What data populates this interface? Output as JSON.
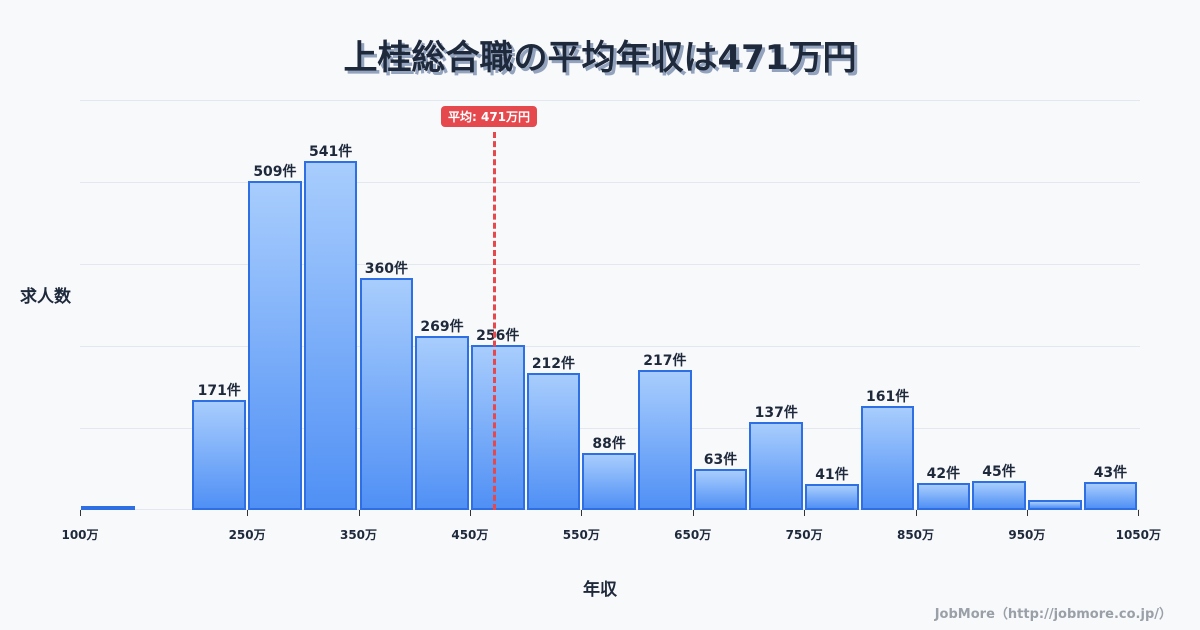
{
  "title": "上桂総合職の平均年収は471万円",
  "average_badge": "平均: 471万円",
  "ylabel": "求人数",
  "xlabel": "年収",
  "credit": "JobMore（http://jobmore.co.jp/）",
  "colors": {
    "bar_fill_top": "#a8cdfd",
    "bar_fill_bottom": "#5090f5",
    "bar_border": "#2f6fe4",
    "average_line": "#e5484d"
  },
  "chart_data": {
    "type": "bar",
    "title": "上桂総合職の平均年収は471万円",
    "xlabel": "年収",
    "ylabel": "求人数",
    "bin_width": "50万",
    "bins": [
      "100-150万",
      "150-200万",
      "200-250万",
      "250-300万",
      "300-350万",
      "350-400万",
      "400-450万",
      "450-500万",
      "500-550万",
      "550-600万",
      "600-650万",
      "650-700万",
      "700-750万",
      "750-800万",
      "800-850万",
      "850-900万",
      "900-950万",
      "950-1000万",
      "1000-1050万"
    ],
    "values": [
      3,
      0,
      171,
      509,
      541,
      360,
      269,
      256,
      212,
      88,
      217,
      63,
      137,
      41,
      161,
      42,
      45,
      15,
      43
    ],
    "labels": [
      "",
      "",
      "171件",
      "509件",
      "541件",
      "360件",
      "269件",
      "256件",
      "212件",
      "88件",
      "217件",
      "63件",
      "137件",
      "41件",
      "161件",
      "42件",
      "45件",
      "",
      "43件"
    ],
    "x_tick_labels": [
      "100万",
      "250万",
      "350万",
      "450万",
      "550万",
      "650万",
      "750万",
      "850万",
      "950万",
      "1050万"
    ],
    "x_tick_values": [
      100,
      250,
      350,
      450,
      550,
      650,
      750,
      850,
      950,
      1050
    ],
    "average": 471,
    "average_label": "平均: 471万円",
    "grid": true,
    "ylim": [
      0,
      635
    ]
  }
}
